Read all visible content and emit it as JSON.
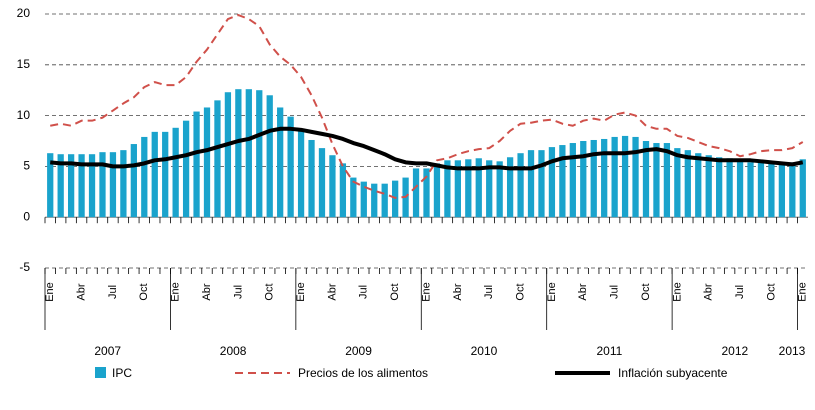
{
  "chart_data": {
    "type": "bar-line",
    "categories": [
      "Ene",
      null,
      null,
      "Abr",
      null,
      null,
      "Jul",
      null,
      null,
      "Oct",
      null,
      null,
      "Ene",
      null,
      null,
      "Abr",
      null,
      null,
      "Jul",
      null,
      null,
      "Oct",
      null,
      null,
      "Ene",
      null,
      null,
      "Abr",
      null,
      null,
      "Jul",
      null,
      null,
      "Oct",
      null,
      null,
      "Ene",
      null,
      null,
      "Abr",
      null,
      null,
      "Jul",
      null,
      null,
      "Oct",
      null,
      null,
      "Ene",
      null,
      null,
      "Abr",
      null,
      null,
      "Jul",
      null,
      null,
      "Oct",
      null,
      null,
      "Ene",
      null,
      null,
      "Abr",
      null,
      null,
      "Jul",
      null,
      null,
      "Oct",
      null,
      null,
      "Ene"
    ],
    "years": [
      "2007",
      "2008",
      "2009",
      "2010",
      "2011",
      "2012",
      "2013"
    ],
    "series": [
      {
        "name": "IPC",
        "kind": "bar",
        "color": "#1aa3cc",
        "values": [
          6.3,
          6.2,
          6.2,
          6.2,
          6.2,
          6.4,
          6.4,
          6.6,
          7.2,
          7.9,
          8.4,
          8.4,
          8.8,
          9.5,
          10.4,
          10.8,
          11.5,
          12.3,
          12.6,
          12.6,
          12.5,
          12.0,
          10.8,
          9.9,
          8.6,
          7.6,
          6.8,
          6.1,
          5.3,
          3.9,
          3.5,
          3.3,
          3.3,
          3.6,
          3.9,
          4.8,
          4.8,
          5.3,
          5.6,
          5.6,
          5.7,
          5.8,
          5.6,
          5.5,
          5.9,
          6.3,
          6.6,
          6.6,
          6.9,
          7.1,
          7.3,
          7.5,
          7.6,
          7.7,
          7.9,
          8.0,
          7.9,
          7.5,
          7.3,
          7.3,
          6.8,
          6.6,
          6.3,
          6.1,
          5.9,
          5.8,
          5.6,
          5.4,
          5.4,
          5.5,
          5.2,
          5.4,
          5.7
        ]
      },
      {
        "name": "Precios de los alimentos",
        "kind": "dashed-line",
        "color": "#d0504a",
        "values": [
          9.0,
          9.2,
          9.0,
          9.5,
          9.5,
          9.8,
          10.5,
          11.2,
          11.8,
          12.8,
          13.3,
          13.0,
          13.0,
          13.8,
          15.3,
          16.5,
          18.0,
          19.5,
          19.9,
          19.5,
          18.8,
          17.0,
          15.8,
          15.0,
          13.8,
          12.0,
          9.8,
          7.2,
          5.0,
          3.5,
          3.0,
          2.6,
          2.3,
          1.9,
          2.0,
          3.0,
          4.0,
          5.6,
          5.8,
          6.2,
          6.5,
          6.7,
          6.8,
          7.5,
          8.5,
          9.2,
          9.3,
          9.5,
          9.6,
          9.2,
          9.0,
          9.5,
          9.7,
          9.5,
          10.1,
          10.3,
          10.0,
          9.0,
          8.7,
          8.7,
          8.0,
          7.8,
          7.4,
          7.0,
          6.8,
          6.5,
          6.0,
          6.2,
          6.5,
          6.6,
          6.6,
          6.8,
          7.4
        ]
      },
      {
        "name": "Inflación subyacente",
        "kind": "thick-line",
        "color": "#000000",
        "values": [
          5.4,
          5.3,
          5.3,
          5.2,
          5.2,
          5.2,
          5.0,
          5.0,
          5.1,
          5.3,
          5.6,
          5.7,
          5.9,
          6.1,
          6.4,
          6.6,
          6.9,
          7.2,
          7.5,
          7.7,
          8.1,
          8.5,
          8.7,
          8.7,
          8.6,
          8.4,
          8.2,
          8.0,
          7.7,
          7.3,
          7.0,
          6.6,
          6.2,
          5.7,
          5.4,
          5.3,
          5.3,
          5.1,
          4.9,
          4.8,
          4.8,
          4.8,
          4.9,
          4.9,
          4.8,
          4.8,
          4.8,
          5.1,
          5.5,
          5.8,
          5.9,
          6.0,
          6.2,
          6.3,
          6.3,
          6.3,
          6.4,
          6.6,
          6.7,
          6.5,
          6.1,
          5.9,
          5.8,
          5.7,
          5.6,
          5.6,
          5.6,
          5.6,
          5.5,
          5.4,
          5.3,
          5.2,
          5.4
        ]
      }
    ],
    "ylim": [
      -5,
      20
    ],
    "yticks": [
      -5,
      0,
      5,
      10,
      15,
      20
    ],
    "grid": true
  }
}
